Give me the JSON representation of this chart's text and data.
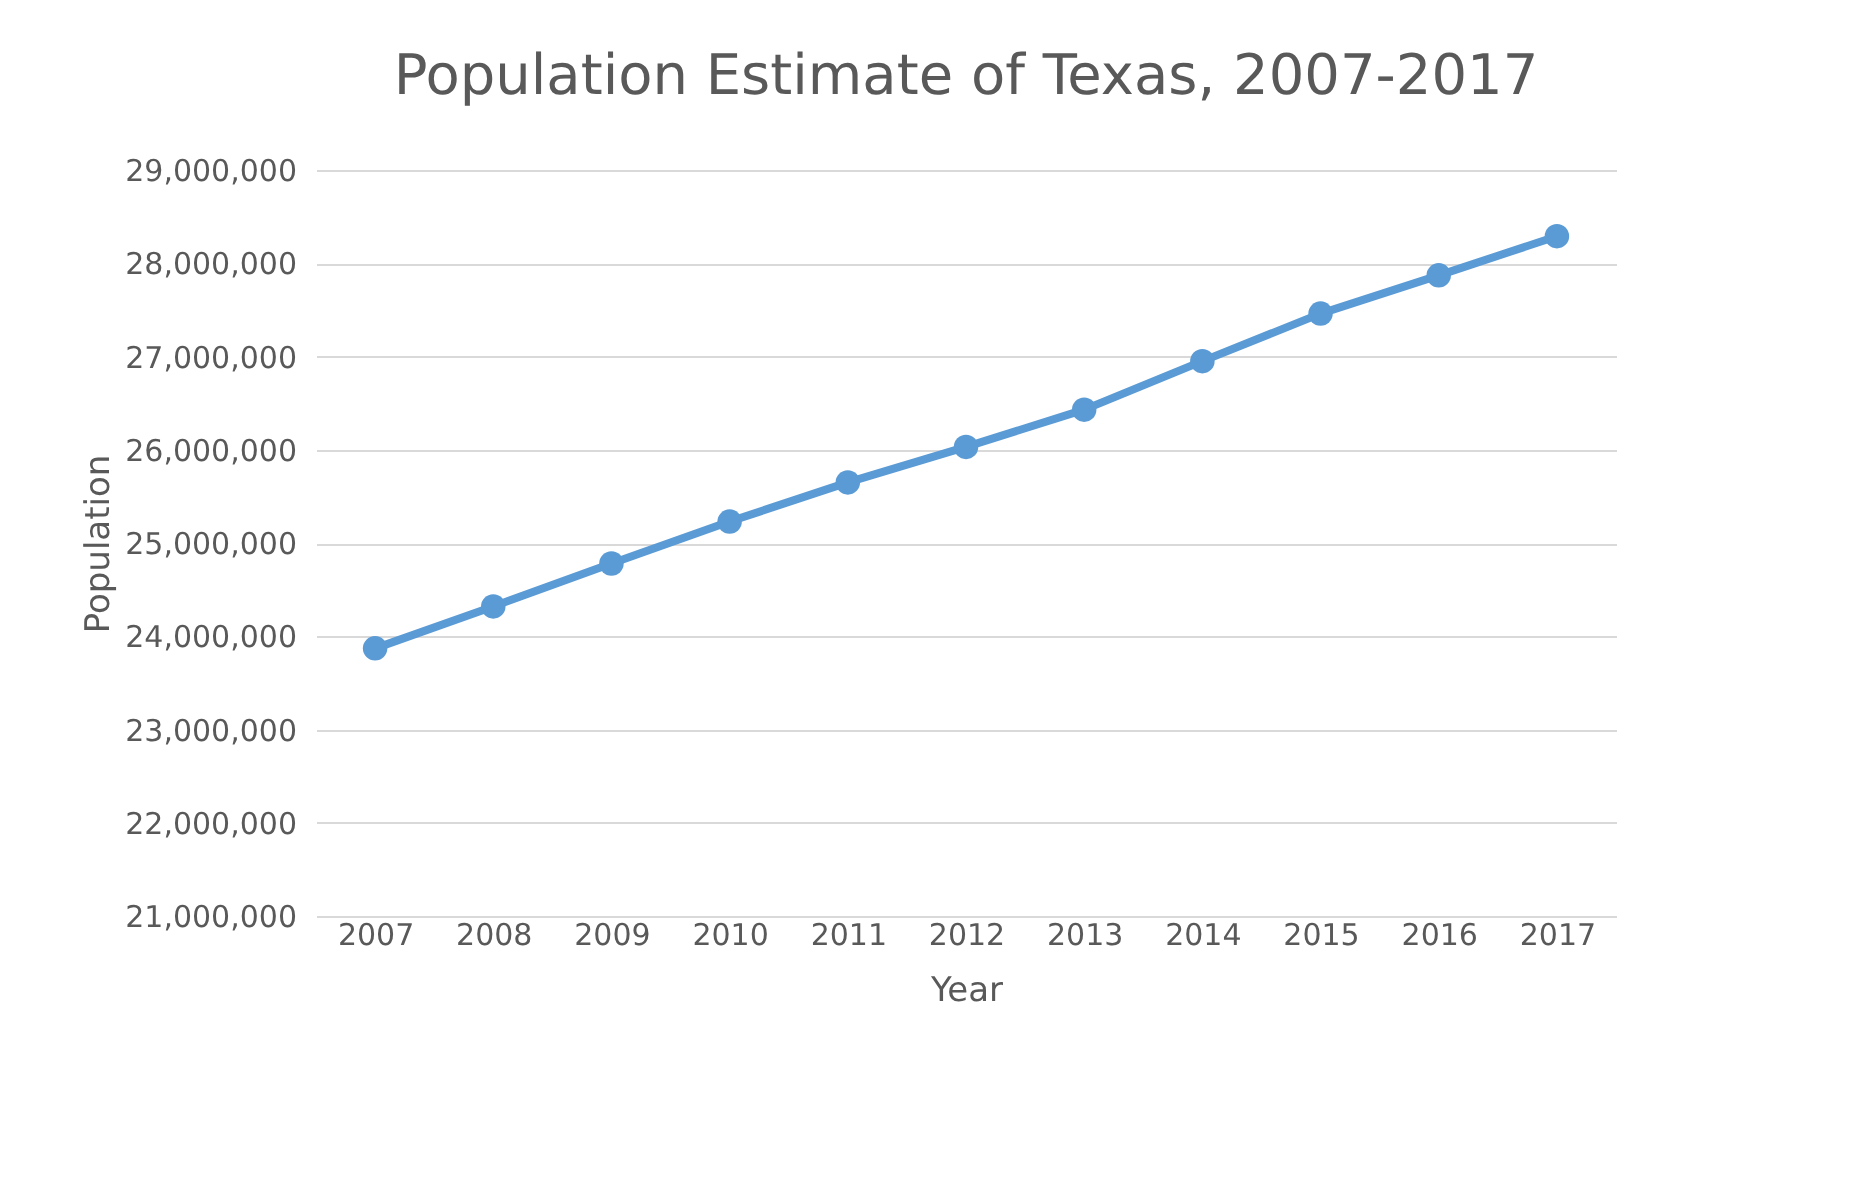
{
  "chart_data": {
    "type": "line",
    "title": "Population Estimate of Texas, 2007-2017",
    "xlabel": "Year",
    "ylabel": "Population",
    "categories": [
      "2007",
      "2008",
      "2009",
      "2010",
      "2011",
      "2012",
      "2013",
      "2014",
      "2015",
      "2016",
      "2017"
    ],
    "series": [
      {
        "color": "#5b9bd5",
        "values": [
          23870000,
          24320000,
          24780000,
          25230000,
          25650000,
          26030000,
          26430000,
          26950000,
          27460000,
          27870000,
          28290000
        ]
      }
    ],
    "ylim": [
      21000000,
      29000000
    ],
    "yticks": [
      {
        "value": 21000000,
        "label": "21,000,000"
      },
      {
        "value": 22000000,
        "label": "22,000,000"
      },
      {
        "value": 23000000,
        "label": "23,000,000"
      },
      {
        "value": 24000000,
        "label": "24,000,000"
      },
      {
        "value": 25000000,
        "label": "25,000,000"
      },
      {
        "value": 26000000,
        "label": "26,000,000"
      },
      {
        "value": 27000000,
        "label": "27,000,000"
      },
      {
        "value": 28000000,
        "label": "28,000,000"
      },
      {
        "value": 29000000,
        "label": "29,000,000"
      }
    ],
    "grid": "y",
    "marker": "circle",
    "line_style": "solid"
  }
}
